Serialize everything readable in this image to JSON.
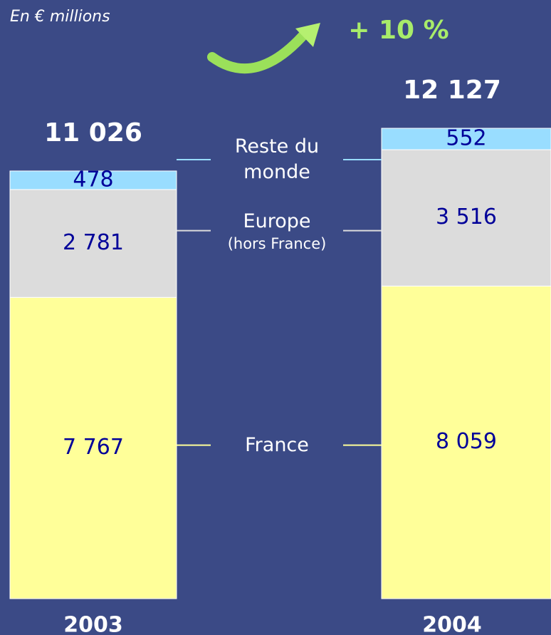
{
  "chart_data": {
    "type": "stacked-bar",
    "subtitle": "En € millions",
    "annotation": "+ 10 %",
    "categories": [
      "2003",
      "2004"
    ],
    "totals": [
      11026,
      12127
    ],
    "total_labels": [
      "11 026",
      "12 127"
    ],
    "series": [
      {
        "name": "France",
        "color": "#ffff99",
        "values": [
          7767,
          8059
        ],
        "value_labels": [
          "7 767",
          "8 059"
        ]
      },
      {
        "name": "Europe",
        "note": "(hors France)",
        "color": "#dcdcdc",
        "values": [
          2781,
          3516
        ],
        "value_labels": [
          "2 781",
          "3 516"
        ]
      },
      {
        "name": "Reste du monde",
        "color": "#99ddff",
        "values": [
          478,
          552
        ],
        "value_labels": [
          "478",
          "552"
        ]
      }
    ]
  }
}
